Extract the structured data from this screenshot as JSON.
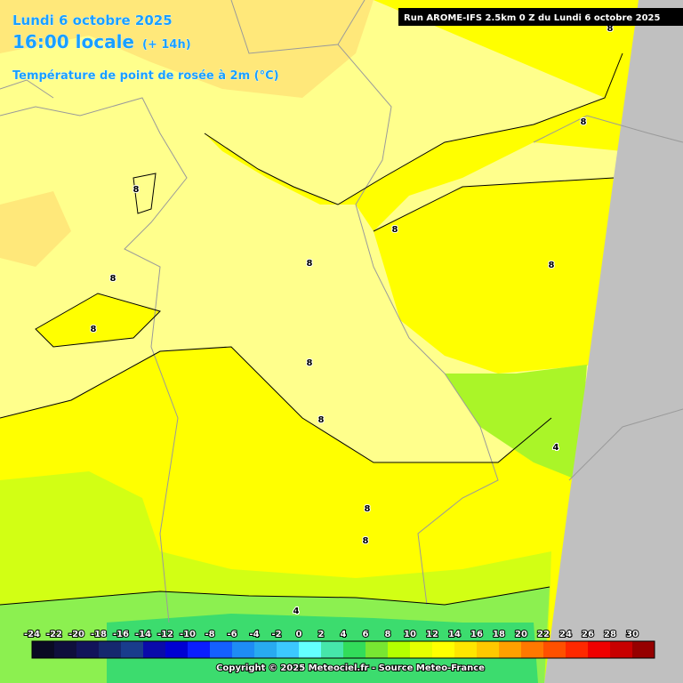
{
  "header": {
    "date": "Lundi 6 octobre 2025",
    "time": "16:00 locale",
    "offset": "(+ 14h)",
    "parameter": "Température de point de rosée à 2m (°C)",
    "run": "Run AROME-IFS 2.5km 0 Z du Lundi 6 octobre 2025"
  },
  "map": {
    "contour_labels": [
      8,
      8,
      8,
      8,
      8,
      8,
      8,
      8,
      8,
      8,
      8,
      8,
      4,
      4
    ]
  },
  "legend": {
    "values": [
      -24,
      -22,
      -20,
      -18,
      -16,
      -14,
      -12,
      -10,
      -8,
      -6,
      -4,
      -2,
      0,
      2,
      4,
      6,
      8,
      10,
      12,
      14,
      16,
      18,
      20,
      22,
      24,
      26,
      28,
      30
    ],
    "colors": [
      "#0a0a23",
      "#0f0f3c",
      "#12145a",
      "#15286e",
      "#193c8c",
      "#0a0aaa",
      "#0000d2",
      "#0a1eff",
      "#1460ff",
      "#1e8cf5",
      "#28aaf0",
      "#3cc8ff",
      "#64ffff",
      "#46e6aa",
      "#32dc5a",
      "#78e632",
      "#b4ff00",
      "#e6ff00",
      "#ffff00",
      "#ffe600",
      "#ffc800",
      "#ffa000",
      "#ff7800",
      "#ff5000",
      "#ff2800",
      "#f00000",
      "#c80000",
      "#960000"
    ]
  },
  "footer": {
    "copyright": "Copyright © 2025 Meteociel.fr - Source Meteo-France"
  }
}
